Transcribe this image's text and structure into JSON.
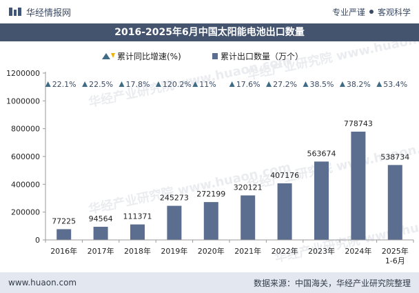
{
  "header": {
    "brand": "华经情报网",
    "right_a": "专业严谨",
    "right_b": "客观科学"
  },
  "chart_data": {
    "type": "bar",
    "title": "2016-2025年6月中国太阳能电池出口数量",
    "categories": [
      "2016年",
      "2017年",
      "2018年",
      "2019年",
      "2020年",
      "2021年",
      "2022年",
      "2023年",
      "2024年",
      "2025年\n1-6月"
    ],
    "series": [
      {
        "name": "累计出口数量（万个）",
        "values": [
          77225,
          94564,
          111371,
          245273,
          272199,
          320121,
          407176,
          563674,
          778743,
          538734
        ]
      },
      {
        "name": "累计同比增速(%)",
        "values": [
          22.1,
          22.5,
          17.8,
          120.2,
          11,
          17.6,
          27.2,
          38.5,
          38.2,
          53.4
        ]
      }
    ],
    "growth_labels": [
      "22.1%",
      "22.5%",
      "17.8%",
      "120.2%",
      "11%",
      "17.6%",
      "27.2%",
      "38.5%",
      "38.2%",
      "53.4%"
    ],
    "y_ticks": [
      0,
      200000,
      400000,
      600000,
      800000,
      1000000,
      1200000
    ],
    "ylim": [
      0,
      1200000
    ],
    "legend_position": "top-center",
    "grid": false,
    "colors": {
      "bar": "#5b6e8f",
      "arrow_up": "#3f6b85",
      "arrow_down": "#f2b200",
      "title_bg": "#44546e"
    }
  },
  "watermark": "华经产业研究院  www.huaon.com",
  "footer": {
    "left": "www.huaon.com",
    "right": "数据来源：中国海关，华经产业研究院整理"
  }
}
